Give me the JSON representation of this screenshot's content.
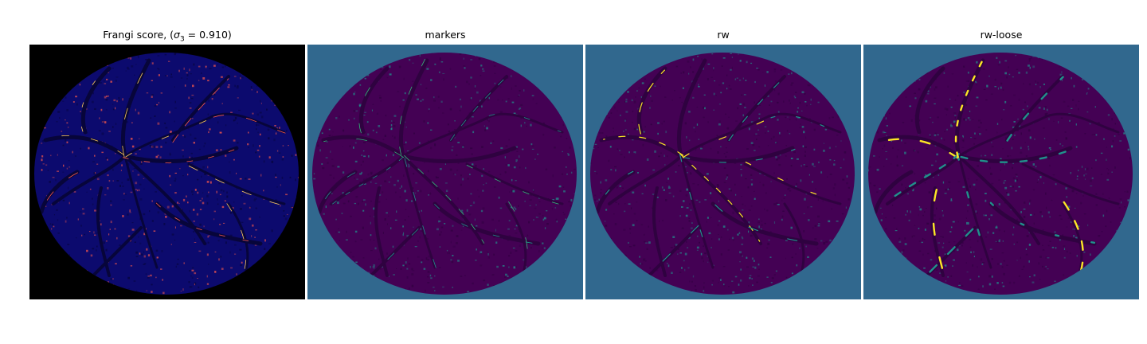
{
  "panels": [
    {
      "title_text": "Frangi score, (",
      "title_sigma": "σ",
      "title_sub": "3",
      "title_eq": " = 0.910)",
      "colors": {
        "background": "#000000",
        "base": "#0c0a6e",
        "vessel": "#07053a",
        "highlight": "#ff5a4a",
        "highlight2": "#ffcc55"
      }
    },
    {
      "title": "markers",
      "colors": {
        "background": "#31688e",
        "base": "#440154",
        "vessel": "#2f0240",
        "highlight": "#21918c",
        "highlight2": "#35b779"
      }
    },
    {
      "title": "rw",
      "colors": {
        "background": "#31688e",
        "base": "#440154",
        "vessel": "#2f0240",
        "highlight": "#21918c",
        "highlight2": "#fde725"
      }
    },
    {
      "title": "rw-loose",
      "colors": {
        "background": "#31688e",
        "base": "#440154",
        "vessel": "#2f0240",
        "highlight": "#21918c",
        "highlight2": "#fde725"
      }
    }
  ]
}
